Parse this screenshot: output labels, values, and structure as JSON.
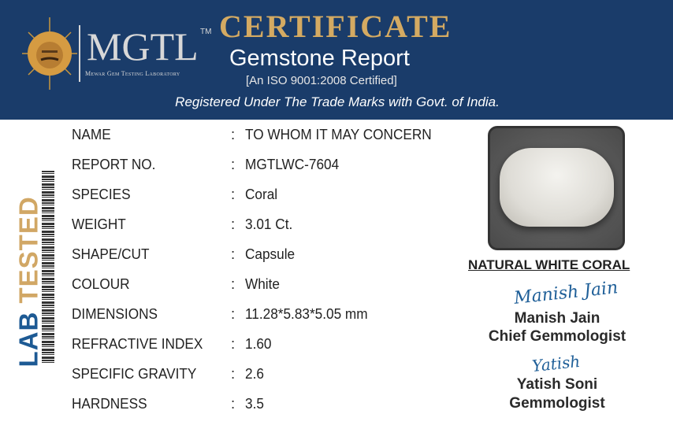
{
  "header": {
    "logo_text": "MGTL",
    "trademark": "TM",
    "lab_name": "Mewar Gem Testing Laboratory",
    "title": "CERTIFICATE",
    "subtitle": "Gemstone Report",
    "iso": "[An ISO 9001:2008 Certified]",
    "registered": "Registered Under The Trade Marks with Govt. of India."
  },
  "side": {
    "lab": "LAB",
    "tested": "TESTED"
  },
  "fields": [
    {
      "label": "NAME",
      "value": "TO WHOM IT MAY CONCERN"
    },
    {
      "label": "REPORT NO.",
      "value": "MGTLWC-7604"
    },
    {
      "label": "SPECIES",
      "value": "Coral"
    },
    {
      "label": "WEIGHT",
      "value": "3.01 Ct."
    },
    {
      "label": "SHAPE/CUT",
      "value": "Capsule"
    },
    {
      "label": "COLOUR",
      "value": "White"
    },
    {
      "label": "DIMENSIONS",
      "value": "11.28*5.83*5.05 mm"
    },
    {
      "label": "REFRACTIVE INDEX",
      "value": "1.60"
    },
    {
      "label": "SPECIFIC GRAVITY",
      "value": "2.6"
    },
    {
      "label": "HARDNESS",
      "value": "3.5"
    }
  ],
  "colon": ":",
  "gem_title": "NATURAL WHITE CORAL",
  "signatories": [
    {
      "signature": "Manish Jain",
      "name": "Manish Jain",
      "role": "Chief Gemmologist"
    },
    {
      "signature": "Yatish",
      "name": "Yatish Soni",
      "role": "Gemmologist"
    }
  ],
  "colors": {
    "header": "#1a3c6a",
    "gold": "#d4aa62",
    "blue": "#1d5a94"
  }
}
